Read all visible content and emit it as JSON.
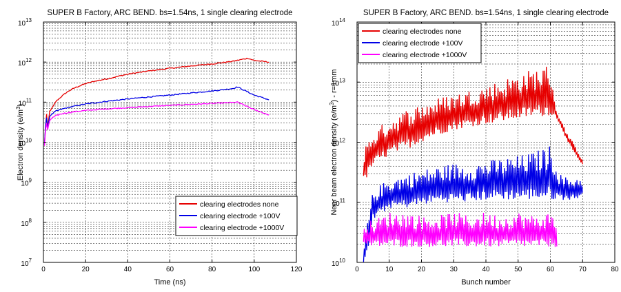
{
  "colors": {
    "red": "#e60000",
    "blue": "#0000e6",
    "magenta": "#ff00ff"
  },
  "chart_data": [
    {
      "type": "line",
      "title": "SUPER B Factory, ARC BEND. bs=1.54ns, 1 single clearing electrode",
      "xlabel": "Time (ns)",
      "ylabel": "Electron density (e/m",
      "ylabel_sup": "3",
      "ylabel_end": ")",
      "xlim": [
        0,
        120
      ],
      "ylim": [
        10000000.0,
        10000000000000.0
      ],
      "yscale": "log",
      "grid": true,
      "legend_position": "bottom-right",
      "xticks": [
        "0",
        "20",
        "40",
        "60",
        "80",
        "100",
        "120"
      ],
      "yticks": [
        {
          "base": "10",
          "exp": "7"
        },
        {
          "base": "10",
          "exp": "8"
        },
        {
          "base": "10",
          "exp": "9"
        },
        {
          "base": "10",
          "exp": "10"
        },
        {
          "base": "10",
          "exp": "11"
        },
        {
          "base": "10",
          "exp": "12"
        },
        {
          "base": "10",
          "exp": "13"
        }
      ],
      "series": [
        {
          "name": "clearing electrodes none",
          "color": "#e60000",
          "x": [
            0.5,
            1,
            1.5,
            2,
            3,
            4,
            5,
            6,
            8,
            10,
            12,
            15,
            20,
            25,
            30,
            40,
            50,
            60,
            70,
            80,
            90,
            97,
            100,
            107
          ],
          "y": [
            9000000000.0,
            25000000000.0,
            50000000000.0,
            22000000000.0,
            60000000000.0,
            70000000000.0,
            85000000000.0,
            105000000000.0,
            130000000000.0,
            160000000000.0,
            190000000000.0,
            230000000000.0,
            290000000000.0,
            340000000000.0,
            380000000000.0,
            500000000000.0,
            600000000000.0,
            700000000000.0,
            800000000000.0,
            900000000000.0,
            1050000000000.0,
            1250000000000.0,
            1100000000000.0,
            1000000000000.0
          ]
        },
        {
          "name": "clearing electrode +100V",
          "color": "#0000e6",
          "x": [
            0.5,
            1,
            1.5,
            2,
            3,
            4,
            5,
            6,
            8,
            10,
            15,
            20,
            30,
            40,
            50,
            60,
            70,
            80,
            90,
            92,
            100,
            107
          ],
          "y": [
            9000000000.0,
            25000000000.0,
            40000000000.0,
            22000000000.0,
            45000000000.0,
            50000000000.0,
            55000000000.0,
            60000000000.0,
            65000000000.0,
            70000000000.0,
            80000000000.0,
            90000000000.0,
            105000000000.0,
            120000000000.0,
            135000000000.0,
            150000000000.0,
            170000000000.0,
            190000000000.0,
            220000000000.0,
            240000000000.0,
            150000000000.0,
            115000000000.0
          ]
        },
        {
          "name": "clearing electrode +1000V",
          "color": "#ff00ff",
          "x": [
            0.5,
            1,
            1.5,
            2,
            3,
            4,
            5,
            6,
            8,
            10,
            15,
            20,
            30,
            40,
            50,
            60,
            70,
            80,
            90,
            92,
            100,
            107
          ],
          "y": [
            8000000000.0,
            20000000000.0,
            30000000000.0,
            20000000000.0,
            35000000000.0,
            40000000000.0,
            43000000000.0,
            46000000000.0,
            50000000000.0,
            53000000000.0,
            58000000000.0,
            62000000000.0,
            68000000000.0,
            73000000000.0,
            78000000000.0,
            83000000000.0,
            88000000000.0,
            93000000000.0,
            98000000000.0,
            100000000000.0,
            65000000000.0,
            48000000000.0
          ]
        }
      ]
    },
    {
      "type": "line",
      "title": "SUPER B Factory, ARC BEND. bs=1.54ns, 1 single clearing electrode",
      "xlabel": "Bunch number",
      "ylabel": "Near beam electron density (e/m",
      "ylabel_sup": "3",
      "ylabel_end": ") - r=1mm",
      "xlim": [
        0,
        80
      ],
      "ylim": [
        10000000000.0,
        100000000000000.0
      ],
      "yscale": "log",
      "grid": true,
      "legend_position": "top-left",
      "xticks": [
        "0",
        "10",
        "20",
        "30",
        "40",
        "50",
        "60",
        "70",
        "80"
      ],
      "yticks": [
        {
          "base": "10",
          "exp": "10"
        },
        {
          "base": "10",
          "exp": "11"
        },
        {
          "base": "10",
          "exp": "12"
        },
        {
          "base": "10",
          "exp": "13"
        },
        {
          "base": "10",
          "exp": "14"
        }
      ],
      "series": [
        {
          "name": "clearing electrodes none",
          "color": "#e60000",
          "x": [
            2,
            5,
            10,
            15,
            20,
            25,
            30,
            35,
            40,
            45,
            50,
            55,
            58,
            60,
            62,
            63,
            65,
            67,
            70
          ],
          "y_low": [
            200000000000.0,
            400000000000.0,
            600000000000.0,
            750000000000.0,
            1000000000000.0,
            1300000000000.0,
            1600000000000.0,
            1800000000000.0,
            2000000000000.0,
            2200000000000.0,
            2400000000000.0,
            2600000000000.0,
            2700000000000.0,
            2800000000000.0,
            2500000000000.0,
            2000000000000.0,
            1100000000000.0,
            700000000000.0,
            400000000000.0
          ],
          "y_high": [
            800000000000.0,
            1500000000000.0,
            2500000000000.0,
            3500000000000.0,
            4500000000000.0,
            5500000000000.0,
            6500000000000.0,
            7500000000000.0,
            9000000000000.0,
            11000000000000.0,
            14000000000000.0,
            17000000000000.0,
            19000000000000.0,
            20000000000000.0,
            3000000000000.0,
            2500000000000.0,
            1500000000000.0,
            1000000000000.0,
            550000000000.0
          ]
        },
        {
          "name": "clearing electrode +100V",
          "color": "#0000e6",
          "x": [
            2,
            3,
            5,
            10,
            15,
            20,
            25,
            30,
            35,
            40,
            45,
            50,
            55,
            60,
            63,
            65,
            67,
            70
          ],
          "y_low": [
            10000000000.0,
            12000000000.0,
            50000000000.0,
            80000000000.0,
            80000000000.0,
            90000000000.0,
            100000000000.0,
            100000000000.0,
            100000000000.0,
            110000000000.0,
            110000000000.0,
            110000000000.0,
            110000000000.0,
            110000000000.0,
            110000000000.0,
            110000000000.0,
            110000000000.0,
            120000000000.0
          ],
          "y_high": [
            15000000000.0,
            40000000000.0,
            160000000000.0,
            250000000000.0,
            300000000000.0,
            350000000000.0,
            400000000000.0,
            450000000000.0,
            450000000000.0,
            500000000000.0,
            550000000000.0,
            600000000000.0,
            700000000000.0,
            900000000000.0,
            300000000000.0,
            260000000000.0,
            260000000000.0,
            270000000000.0
          ]
        },
        {
          "name": "clearing electrode +1000V",
          "color": "#ff00ff",
          "x": [
            2,
            5,
            10,
            15,
            20,
            25,
            30,
            35,
            40,
            45,
            50,
            55,
            60,
            62
          ],
          "y_low": [
            18000000000.0,
            18000000000.0,
            18000000000.0,
            18000000000.0,
            18000000000.0,
            18000000000.0,
            18000000000.0,
            18000000000.0,
            18000000000.0,
            18000000000.0,
            18000000000.0,
            18000000000.0,
            18000000000.0,
            18000000000.0
          ],
          "y_high": [
            50000000000.0,
            50000000000.0,
            70000000000.0,
            70000000000.0,
            60000000000.0,
            60000000000.0,
            70000000000.0,
            60000000000.0,
            70000000000.0,
            60000000000.0,
            70000000000.0,
            60000000000.0,
            70000000000.0,
            50000000000.0
          ]
        }
      ]
    }
  ]
}
